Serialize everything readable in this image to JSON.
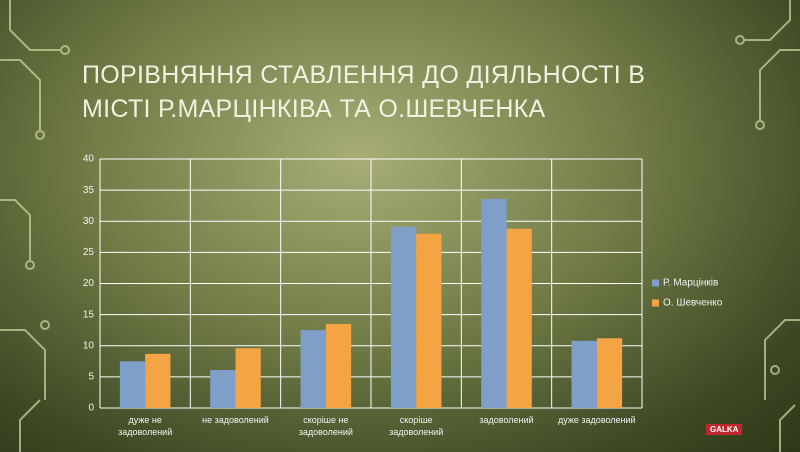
{
  "chart_data": {
    "type": "bar",
    "title": "ПОРІВНЯННЯ СТАВЛЕННЯ ДО ДІЯЛЬНОСТІ В МІСТІ Р.МАРЦІНКІВА ТА О.ШЕВЧЕНКА",
    "categories": [
      "дуже не задоволений",
      "не задоволений",
      "скоріше не задоволений",
      "скоріше задоволений",
      "задоволений",
      "дуже задоволений"
    ],
    "series": [
      {
        "name": "Р. Марцінків",
        "color": "#7f9fcb",
        "values": [
          7.5,
          6.1,
          12.5,
          29.1,
          33.6,
          10.8
        ]
      },
      {
        "name": "О. Шевченко",
        "color": "#f4a442",
        "values": [
          8.7,
          9.6,
          13.5,
          28,
          28.8,
          11.2
        ]
      }
    ],
    "ylim": [
      0,
      40
    ],
    "yticks": [
      0,
      5,
      10,
      15,
      20,
      25,
      30,
      35,
      40
    ],
    "grid": true,
    "legend": "right",
    "logo": "GALKA"
  }
}
